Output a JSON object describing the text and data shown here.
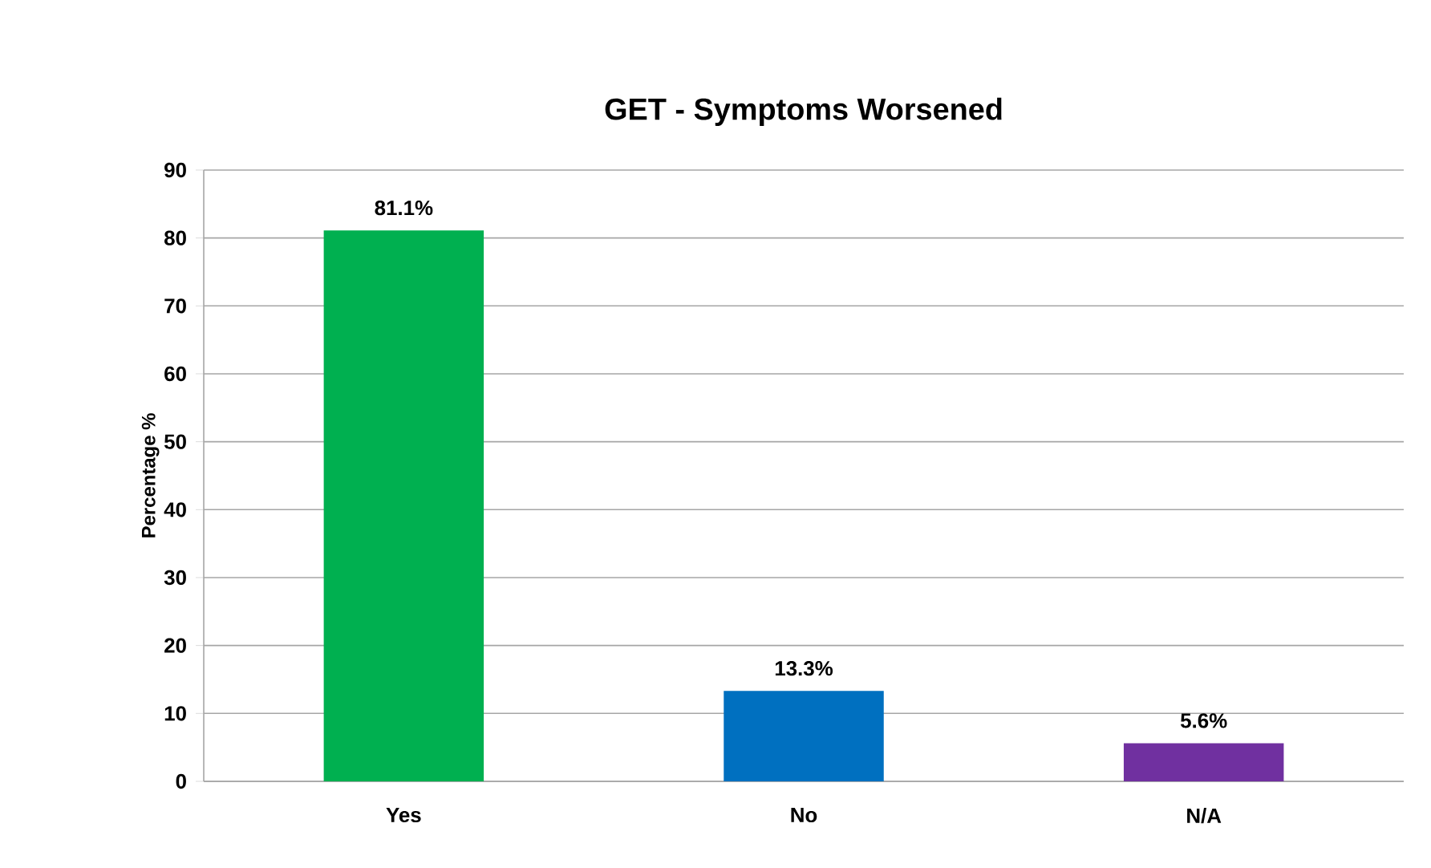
{
  "chart_data": {
    "type": "bar",
    "title": "GET - Symptoms Worsened",
    "ylabel": "Percentage %",
    "categories": [
      "Yes",
      "No",
      "N/A"
    ],
    "values": [
      81.1,
      13.3,
      5.6
    ],
    "colors": [
      "#00b050",
      "#0070c0",
      "#7030a0"
    ],
    "value_labels": [
      "81.1%",
      "13.3%",
      "5.6%"
    ],
    "ylim": [
      0,
      90
    ],
    "yticks": [
      0,
      10,
      20,
      30,
      40,
      50,
      60,
      70,
      80,
      90
    ],
    "grid": "y"
  }
}
